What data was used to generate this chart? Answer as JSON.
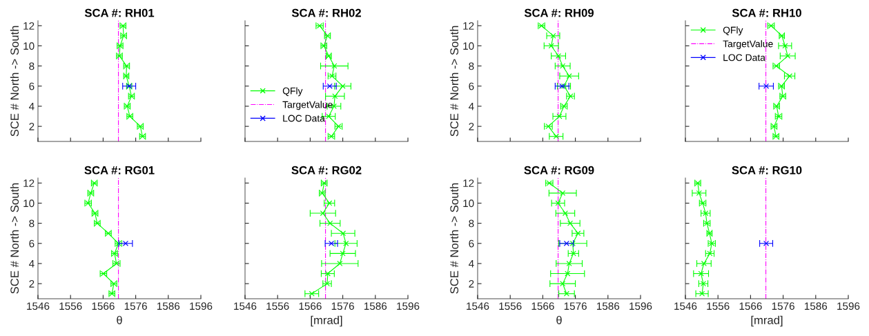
{
  "chart_data": [
    {
      "type": "line",
      "title": "SCA #: RH01",
      "ylabel": "SCE # North -> South",
      "xlim": [
        1546,
        1596
      ],
      "xticks": [
        1546,
        1556,
        1566,
        1576,
        1586,
        1596
      ],
      "ylim": [
        0.5,
        12.5
      ],
      "yticks": [
        2,
        4,
        6,
        8,
        10,
        12
      ],
      "tick_labels": "y",
      "legend": false,
      "series": [
        {
          "color": "#00ff00",
          "marker": "cross",
          "values": [
            1,
            2,
            3,
            4,
            5,
            6,
            7,
            8,
            9,
            10,
            11,
            12
          ],
          "x": [
            1578.1,
            1577.4,
            1574.2,
            1573.4,
            1574.7,
            1574.0,
            1573.1,
            1573.2,
            1571.0,
            1571.2,
            1572.3,
            1572.1
          ],
          "xerrors": [
            0.9,
            0.9,
            0.9,
            0.9,
            0.9,
            0.8,
            0.8,
            0.9,
            0.9,
            0.9,
            0.9,
            0.9
          ]
        },
        {
          "color": "#0000ff",
          "marker": "cross",
          "values": [
            6
          ],
          "x": [
            1574.0
          ],
          "xerrors": [
            2.0
          ]
        }
      ],
      "ref_lines": [
        {
          "axis": "x",
          "value": 1570.7,
          "color": "#ff00ff",
          "line_style": "dashdot"
        }
      ]
    },
    {
      "type": "line",
      "title": "SCA #: RH02",
      "xlim": [
        1546,
        1596
      ],
      "xticks": [
        1546,
        1556,
        1566,
        1576,
        1586,
        1596
      ],
      "ylim": [
        0.5,
        12.5
      ],
      "yticks": [
        2,
        4,
        6,
        8,
        10,
        12
      ],
      "tick_labels": false,
      "legend": "bottom left",
      "series": [
        {
          "name": "QFly",
          "color": "#00ff00",
          "marker": "cross",
          "values": [
            1,
            2,
            3,
            4,
            5,
            6,
            7,
            8,
            9,
            10,
            11,
            12
          ],
          "x": [
            1572.5,
            1574.7,
            1571.7,
            1573.3,
            1573.6,
            1576.0,
            1572.7,
            1573.4,
            1571.7,
            1570.2,
            1571.3,
            1568.9
          ],
          "xerrors": [
            1.0,
            1.1,
            2.0,
            2.1,
            2.9,
            2.5,
            1.2,
            4.2,
            0.8,
            0.9,
            0.9,
            1.1
          ]
        },
        {
          "name": "LOC Data",
          "color": "#0000ff",
          "marker": "cross",
          "values": [
            6
          ],
          "x": [
            1572.0
          ],
          "xerrors": [
            2.0
          ]
        }
      ],
      "ref_lines": [
        {
          "axis": "x",
          "value": 1570.7,
          "label": "TargetValue",
          "color": "#ff00ff",
          "line_style": "dashdot"
        }
      ]
    },
    {
      "type": "line",
      "title": "SCA #: RH09",
      "ylabel": "SCE # North -> South",
      "xlim": [
        1546,
        1596
      ],
      "xticks": [
        1546,
        1556,
        1566,
        1576,
        1586,
        1596
      ],
      "ylim": [
        0.5,
        12.5
      ],
      "yticks": [
        2,
        4,
        6,
        8,
        10,
        12
      ],
      "tick_labels": "y",
      "legend": false,
      "series": [
        {
          "color": "#00ff00",
          "marker": "cross",
          "values": [
            1,
            2,
            3,
            4,
            5,
            6,
            7,
            8,
            9,
            10,
            11,
            12
          ],
          "x": [
            1570.1,
            1567.7,
            1571.1,
            1572.5,
            1574.5,
            1572.5,
            1574.1,
            1572.1,
            1570.8,
            1568.6,
            1569.2,
            1565.6
          ],
          "xerrors": [
            2.1,
            1.2,
            2.0,
            1.0,
            1.2,
            2.0,
            2.9,
            2.3,
            2.2,
            2.2,
            2.0,
            1.0
          ]
        },
        {
          "color": "#0000ff",
          "marker": "cross",
          "values": [
            6
          ],
          "x": [
            1571.9
          ],
          "xerrors": [
            2.1
          ]
        }
      ],
      "ref_lines": [
        {
          "axis": "x",
          "value": 1570.7,
          "color": "#ff00ff",
          "line_style": "dashdot"
        }
      ]
    },
    {
      "type": "line",
      "title": "SCA #: RH10",
      "xlim": [
        1546,
        1596
      ],
      "xticks": [
        1546,
        1556,
        1566,
        1576,
        1586,
        1596
      ],
      "ylim": [
        0.5,
        12.5
      ],
      "yticks": [
        2,
        4,
        6,
        8,
        10,
        12
      ],
      "tick_labels": false,
      "legend": "top left",
      "series": [
        {
          "name": "QFly",
          "color": "#00ff00",
          "marker": "cross",
          "values": [
            1,
            2,
            3,
            4,
            5,
            6,
            7,
            8,
            9,
            10,
            11,
            12
          ],
          "x": [
            1573.8,
            1573.2,
            1574.6,
            1574.0,
            1575.9,
            1575.5,
            1578.0,
            1573.9,
            1577.4,
            1576.6,
            1575.6,
            1572.3
          ],
          "xerrors": [
            0.9,
            0.9,
            1.0,
            0.9,
            0.9,
            0.9,
            1.6,
            1.0,
            2.3,
            2.0,
            0.8,
            1.0
          ]
        },
        {
          "name": "LOC Data",
          "color": "#0000ff",
          "marker": "cross",
          "values": [
            6
          ],
          "x": [
            1570.8
          ],
          "xerrors": [
            2.2
          ]
        }
      ],
      "ref_lines": [
        {
          "axis": "x",
          "value": 1570.7,
          "label": "TargetValue",
          "color": "#ff00ff",
          "line_style": "dashdot"
        }
      ]
    },
    {
      "type": "line",
      "title": "SCA #: RG01",
      "xlabel": "θ",
      "ylabel": "SCE # North -> South",
      "xlim": [
        1546,
        1596
      ],
      "xticks": [
        1546,
        1556,
        1566,
        1576,
        1586,
        1596
      ],
      "ylim": [
        0.5,
        12.5
      ],
      "yticks": [
        2,
        4,
        6,
        8,
        10,
        12
      ],
      "legend": false,
      "series": [
        {
          "color": "#00ff00",
          "marker": "cross",
          "values": [
            1,
            2,
            3,
            4,
            5,
            6,
            7,
            8,
            9,
            10,
            11,
            12
          ],
          "x": [
            1568.7,
            1569.3,
            1566.1,
            1570.1,
            1569.5,
            1570.7,
            1567.6,
            1564.2,
            1563.5,
            1561.4,
            1562.2,
            1563.3
          ],
          "xerrors": [
            0.9,
            0.9,
            1.0,
            1.1,
            0.9,
            1.0,
            0.9,
            0.9,
            0.9,
            1.0,
            0.9,
            0.9
          ]
        },
        {
          "color": "#0000ff",
          "marker": "cross",
          "values": [
            6
          ],
          "x": [
            1572.9
          ],
          "xerrors": [
            2.1
          ]
        }
      ],
      "ref_lines": [
        {
          "axis": "x",
          "value": 1570.7,
          "color": "#ff00ff",
          "line_style": "dashdot"
        }
      ]
    },
    {
      "type": "line",
      "title": "SCA #: RG02",
      "xlabel": "[mrad]",
      "xlim": [
        1546,
        1596
      ],
      "xticks": [
        1546,
        1556,
        1566,
        1576,
        1586,
        1596
      ],
      "ylim": [
        0.5,
        12.5
      ],
      "yticks": [
        2,
        4,
        6,
        8,
        10,
        12
      ],
      "tick_labels": "x",
      "legend": false,
      "series": [
        {
          "color": "#00ff00",
          "marker": "cross",
          "values": [
            1,
            2,
            3,
            4,
            5,
            6,
            7,
            8,
            9,
            10,
            11,
            12
          ],
          "x": [
            1566.5,
            1571.2,
            1571.4,
            1575.1,
            1576.0,
            1577.0,
            1576.1,
            1572.1,
            1569.9,
            1571.9,
            1569.7,
            1570.3
          ],
          "xerrors": [
            2.1,
            1.3,
            2.0,
            5.6,
            3.9,
            3.4,
            3.6,
            3.1,
            3.9,
            1.6,
            0.9,
            0.9
          ]
        },
        {
          "color": "#0000ff",
          "marker": "cross",
          "values": [
            6
          ],
          "x": [
            1572.5
          ],
          "xerrors": [
            1.9
          ]
        }
      ],
      "ref_lines": [
        {
          "axis": "x",
          "value": 1570.7,
          "color": "#ff00ff",
          "line_style": "dashdot"
        }
      ]
    },
    {
      "type": "line",
      "title": "SCA #: RG09",
      "xlabel": "θ",
      "ylabel": "SCE # North -> South",
      "xlim": [
        1546,
        1596
      ],
      "xticks": [
        1546,
        1556,
        1566,
        1576,
        1586,
        1596
      ],
      "ylim": [
        0.5,
        12.5
      ],
      "yticks": [
        2,
        4,
        6,
        8,
        10,
        12
      ],
      "legend": false,
      "series": [
        {
          "color": "#00ff00",
          "marker": "cross",
          "values": [
            1,
            2,
            3,
            4,
            5,
            6,
            7,
            8,
            9,
            10,
            11,
            12
          ],
          "x": [
            1573.3,
            1572.1,
            1573.6,
            1574.1,
            1575.4,
            1575.2,
            1576.8,
            1574.4,
            1572.9,
            1570.7,
            1572.1,
            1568.0
          ],
          "xerrors": [
            2.4,
            3.9,
            5.2,
            4.0,
            1.6,
            4.3,
            1.8,
            3.0,
            2.9,
            2.0,
            4.2,
            1.1
          ]
        },
        {
          "color": "#0000ff",
          "marker": "cross",
          "values": [
            6
          ],
          "x": [
            1573.3
          ],
          "xerrors": [
            2.1
          ]
        }
      ],
      "ref_lines": [
        {
          "axis": "x",
          "value": 1570.7,
          "color": "#ff00ff",
          "line_style": "dashdot"
        }
      ]
    },
    {
      "type": "line",
      "title": "SCA #: RG10",
      "xlabel": "[mrad]",
      "xlim": [
        1546,
        1596
      ],
      "xticks": [
        1546,
        1556,
        1566,
        1576,
        1586,
        1596
      ],
      "ylim": [
        0.5,
        12.5
      ],
      "yticks": [
        2,
        4,
        6,
        8,
        10,
        12
      ],
      "tick_labels": "x",
      "legend": false,
      "series": [
        {
          "color": "#00ff00",
          "marker": "cross",
          "values": [
            1,
            2,
            3,
            4,
            5,
            6,
            7,
            8,
            9,
            10,
            11,
            12
          ],
          "x": [
            1551.1,
            1551.5,
            1550.8,
            1551.7,
            1553.5,
            1554.1,
            1553.4,
            1552.6,
            1552.2,
            1551.3,
            1550.2,
            1549.8
          ],
          "xerrors": [
            1.9,
            1.4,
            2.3,
            2.2,
            1.3,
            1.1,
            0.8,
            1.0,
            1.4,
            1.0,
            2.1,
            0.9
          ]
        },
        {
          "color": "#0000ff",
          "marker": "cross",
          "values": [
            6
          ],
          "x": [
            1570.8
          ],
          "xerrors": [
            2.0
          ]
        }
      ],
      "ref_lines": [
        {
          "axis": "x",
          "value": 1570.7,
          "color": "#ff00ff",
          "line_style": "dashdot"
        }
      ]
    }
  ]
}
